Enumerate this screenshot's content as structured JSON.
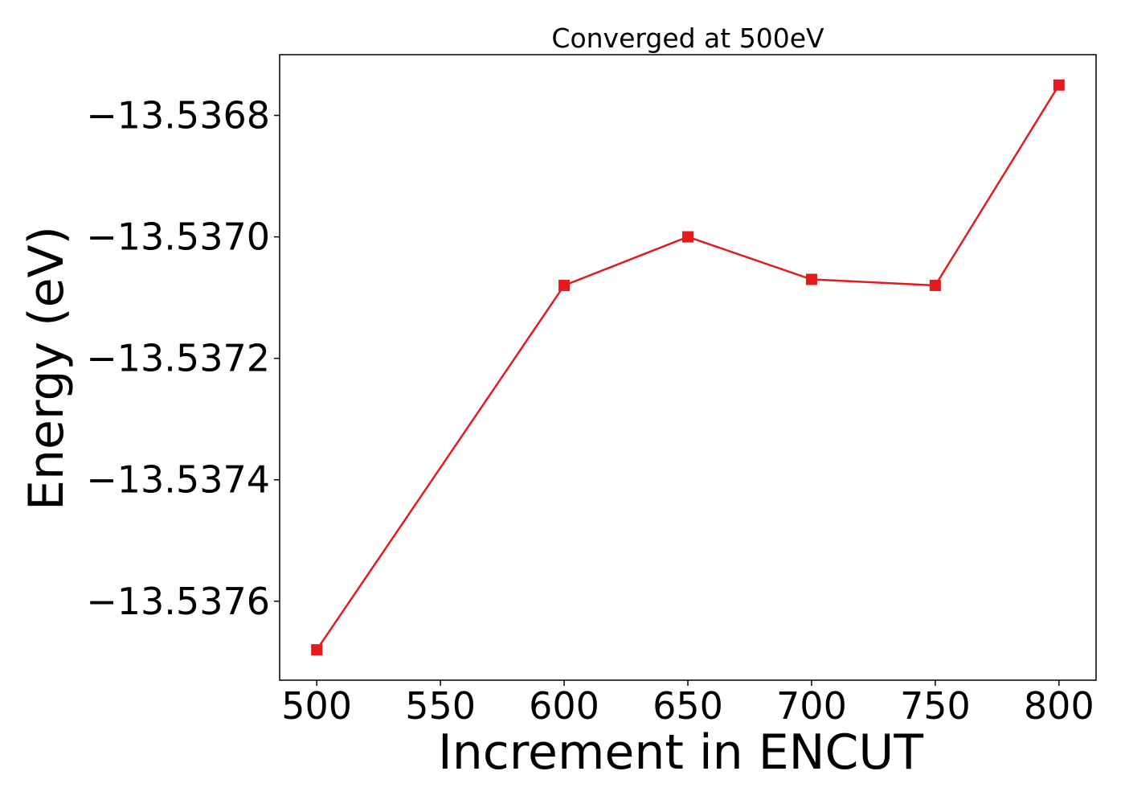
{
  "chart_data": {
    "type": "line",
    "title": "Converged at 500eV",
    "xlabel": "Increment in ENCUT",
    "ylabel": "Energy (eV)",
    "x": [
      500,
      600,
      650,
      700,
      750,
      800
    ],
    "series": [
      {
        "values": [
          -13.53768,
          -13.53708,
          -13.537,
          -13.53707,
          -13.53708,
          -13.53675
        ],
        "color": "#e41a1c",
        "marker": "square"
      }
    ],
    "xticks": [
      500,
      550,
      600,
      650,
      700,
      750,
      800
    ],
    "xtick_labels": [
      "500",
      "550",
      "600",
      "650",
      "700",
      "750",
      "800"
    ],
    "yticks": [
      -13.5376,
      -13.5374,
      -13.5372,
      -13.537,
      -13.5368
    ],
    "ytick_labels": [
      "−13.5376",
      "−13.5374",
      "−13.5372",
      "−13.5370",
      "−13.5368"
    ],
    "xlim": [
      485,
      815
    ],
    "ylim": [
      -13.53773,
      -13.5367
    ],
    "grid": false,
    "legend": "none"
  }
}
